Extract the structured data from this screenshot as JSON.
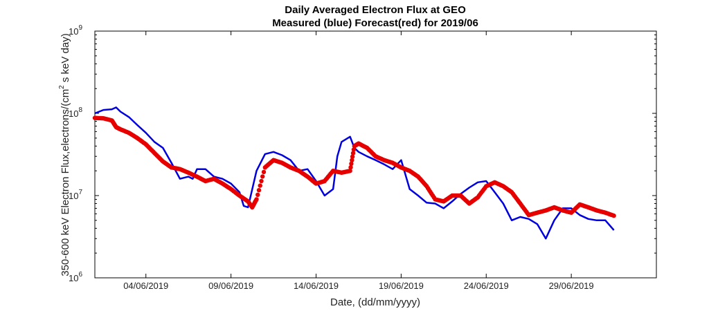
{
  "chart_data": {
    "type": "line",
    "title": "Daily Averaged Electron Flux at GEO",
    "subtitle": "Measured (blue) Forecast(red) for 2019/06",
    "xlabel": "Date, (dd/mm/yyyy)",
    "ylabel_parts": [
      "350-600 keV Electron Flux,electrons/(cm",
      "2",
      " s keV day)"
    ],
    "x_start": "2019-06-01",
    "x_end": "2019-07-04",
    "x_ticks": [
      "04/06/2019",
      "09/06/2019",
      "14/06/2019",
      "19/06/2019",
      "24/06/2019",
      "29/06/2019"
    ],
    "y_scale": "log",
    "ylim": [
      1000000,
      1000000000
    ],
    "y_ticks": [
      {
        "base": "10",
        "exp": "6"
      },
      {
        "base": "10",
        "exp": "7"
      },
      {
        "base": "10",
        "exp": "8"
      },
      {
        "base": "10",
        "exp": "9"
      }
    ],
    "grid": false,
    "series": [
      {
        "name": "Measured",
        "color": "#0000dd",
        "marker": "line",
        "x": [
          "2019-06-01",
          "2019-06-01 12:00",
          "2019-06-02",
          "2019-06-02 06:00",
          "2019-06-02 12:00",
          "2019-06-03",
          "2019-06-03 12:00",
          "2019-06-04",
          "2019-06-04 12:00",
          "2019-06-05",
          "2019-06-05 12:00",
          "2019-06-06",
          "2019-06-06 12:00",
          "2019-06-06 18:00",
          "2019-06-07",
          "2019-06-07 12:00",
          "2019-06-08",
          "2019-06-08 12:00",
          "2019-06-09",
          "2019-06-09 12:00",
          "2019-06-09 18:00",
          "2019-06-10",
          "2019-06-10 12:00",
          "2019-06-11",
          "2019-06-11 12:00",
          "2019-06-12",
          "2019-06-12 12:00",
          "2019-06-13",
          "2019-06-13 12:00",
          "2019-06-14",
          "2019-06-14 12:00",
          "2019-06-15",
          "2019-06-15 06:00",
          "2019-06-15 12:00",
          "2019-06-16",
          "2019-06-16 06:00",
          "2019-06-16 12:00",
          "2019-06-17",
          "2019-06-17 12:00",
          "2019-06-18",
          "2019-06-18 12:00",
          "2019-06-19",
          "2019-06-19 12:00",
          "2019-06-20",
          "2019-06-20 12:00",
          "2019-06-21",
          "2019-06-21 12:00",
          "2019-06-22",
          "2019-06-22 12:00",
          "2019-06-23",
          "2019-06-23 12:00",
          "2019-06-24",
          "2019-06-24 12:00",
          "2019-06-25",
          "2019-06-25 12:00",
          "2019-06-26",
          "2019-06-26 12:00",
          "2019-06-27",
          "2019-06-27 12:00",
          "2019-06-28",
          "2019-06-28 12:00",
          "2019-06-29",
          "2019-06-29 12:00",
          "2019-06-30",
          "2019-06-30 12:00",
          "2019-07-01",
          "2019-07-01 12:00"
        ],
        "y": [
          100000000,
          110000000,
          112000000,
          118000000,
          105000000,
          90000000,
          72000000,
          58000000,
          45000000,
          38000000,
          25000000,
          16000000,
          17000000,
          16000000,
          21000000,
          21000000,
          17000000,
          16000000,
          14000000,
          11000000,
          7500000,
          7200000,
          20000000,
          32000000,
          34000000,
          31000000,
          27000000,
          20000000,
          21000000,
          15000000,
          10000000,
          12000000,
          30000000,
          45000000,
          52000000,
          38000000,
          34000000,
          30000000,
          27000000,
          24000000,
          21000000,
          27000000,
          12000000,
          10000000,
          8200000,
          8000000,
          7000000,
          8500000,
          10500000,
          12500000,
          14500000,
          15000000,
          11000000,
          8000000,
          5000000,
          5500000,
          5200000,
          4500000,
          3000000,
          5000000,
          7000000,
          7000000,
          5800000,
          5200000,
          5000000,
          5000000,
          3800000
        ]
      },
      {
        "name": "Forecast",
        "color": "#e60000",
        "marker": "dot",
        "x": [
          "2019-06-01",
          "2019-06-01 12:00",
          "2019-06-02",
          "2019-06-02 06:00",
          "2019-06-02 12:00",
          "2019-06-03",
          "2019-06-03 12:00",
          "2019-06-04",
          "2019-06-04 12:00",
          "2019-06-05",
          "2019-06-05 12:00",
          "2019-06-06",
          "2019-06-06 12:00",
          "2019-06-07",
          "2019-06-07 12:00",
          "2019-06-08",
          "2019-06-08 12:00",
          "2019-06-09",
          "2019-06-09 12:00",
          "2019-06-10",
          "2019-06-10 06:00",
          "2019-06-10 12:00",
          "2019-06-11",
          "2019-06-11 12:00",
          "2019-06-12",
          "2019-06-12 12:00",
          "2019-06-13",
          "2019-06-13 12:00",
          "2019-06-14",
          "2019-06-14 12:00",
          "2019-06-15",
          "2019-06-15 12:00",
          "2019-06-16",
          "2019-06-16 06:00",
          "2019-06-16 12:00",
          "2019-06-17",
          "2019-06-17 12:00",
          "2019-06-18",
          "2019-06-18 12:00",
          "2019-06-19",
          "2019-06-19 12:00",
          "2019-06-20",
          "2019-06-20 12:00",
          "2019-06-21",
          "2019-06-21 12:00",
          "2019-06-22",
          "2019-06-22 12:00",
          "2019-06-23",
          "2019-06-23 12:00",
          "2019-06-24",
          "2019-06-24 12:00",
          "2019-06-25",
          "2019-06-25 12:00",
          "2019-06-26",
          "2019-06-26 12:00",
          "2019-06-27",
          "2019-06-27 12:00",
          "2019-06-28",
          "2019-06-28 12:00",
          "2019-06-29",
          "2019-06-29 12:00",
          "2019-06-30",
          "2019-06-30 12:00",
          "2019-07-01",
          "2019-07-01 12:00"
        ],
        "y": [
          88000000,
          87000000,
          82000000,
          68000000,
          64000000,
          58000000,
          50000000,
          42000000,
          33000000,
          26000000,
          22000000,
          21000000,
          19000000,
          17000000,
          15000000,
          16000000,
          14000000,
          12000000,
          10000000,
          8500000,
          7200000,
          9000000,
          22000000,
          27000000,
          25000000,
          22000000,
          20000000,
          17000000,
          14000000,
          15000000,
          20000000,
          19000000,
          20000000,
          40000000,
          43000000,
          38000000,
          30000000,
          27000000,
          25000000,
          22000000,
          20000000,
          17000000,
          13000000,
          9000000,
          8500000,
          10000000,
          10000000,
          8000000,
          9500000,
          13000000,
          14500000,
          13000000,
          11000000,
          8000000,
          5800000,
          6200000,
          6600000,
          7200000,
          6600000,
          6200000,
          7800000,
          7200000,
          6600000,
          6200000,
          5700000
        ]
      }
    ]
  }
}
